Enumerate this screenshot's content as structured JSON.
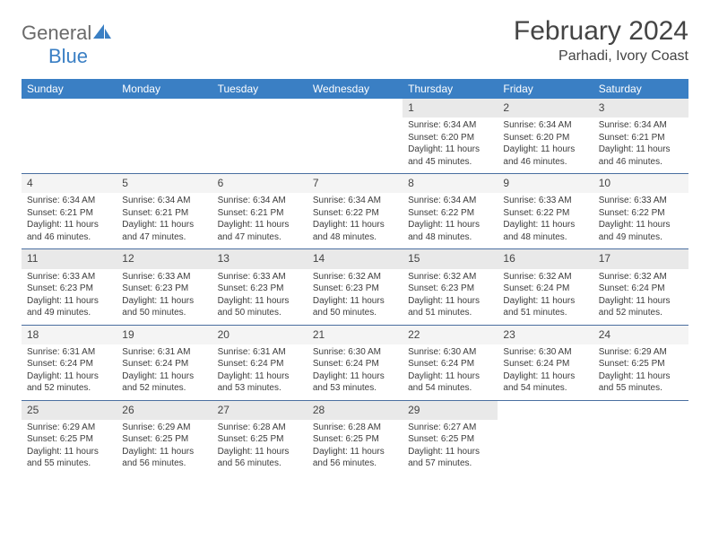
{
  "logo": {
    "part1": "General",
    "part2": "Blue"
  },
  "title": "February 2024",
  "location": "Parhadi, Ivory Coast",
  "day_headers": [
    "Sunday",
    "Monday",
    "Tuesday",
    "Wednesday",
    "Thursday",
    "Friday",
    "Saturday"
  ],
  "colors": {
    "header_bg": "#3a7fc4",
    "header_text": "#ffffff",
    "band_even": "#e9e9e9",
    "band_odd": "#f4f4f4",
    "divider": "#4a6fa0",
    "logo_gray": "#6a6a6a",
    "logo_blue": "#3a7fc4"
  },
  "weeks": [
    {
      "band": "even",
      "days": [
        null,
        null,
        null,
        null,
        {
          "n": "1",
          "sr": "6:34 AM",
          "ss": "6:20 PM",
          "dl": "11 hours and 45 minutes."
        },
        {
          "n": "2",
          "sr": "6:34 AM",
          "ss": "6:20 PM",
          "dl": "11 hours and 46 minutes."
        },
        {
          "n": "3",
          "sr": "6:34 AM",
          "ss": "6:21 PM",
          "dl": "11 hours and 46 minutes."
        }
      ]
    },
    {
      "band": "odd",
      "days": [
        {
          "n": "4",
          "sr": "6:34 AM",
          "ss": "6:21 PM",
          "dl": "11 hours and 46 minutes."
        },
        {
          "n": "5",
          "sr": "6:34 AM",
          "ss": "6:21 PM",
          "dl": "11 hours and 47 minutes."
        },
        {
          "n": "6",
          "sr": "6:34 AM",
          "ss": "6:21 PM",
          "dl": "11 hours and 47 minutes."
        },
        {
          "n": "7",
          "sr": "6:34 AM",
          "ss": "6:22 PM",
          "dl": "11 hours and 48 minutes."
        },
        {
          "n": "8",
          "sr": "6:34 AM",
          "ss": "6:22 PM",
          "dl": "11 hours and 48 minutes."
        },
        {
          "n": "9",
          "sr": "6:33 AM",
          "ss": "6:22 PM",
          "dl": "11 hours and 48 minutes."
        },
        {
          "n": "10",
          "sr": "6:33 AM",
          "ss": "6:22 PM",
          "dl": "11 hours and 49 minutes."
        }
      ]
    },
    {
      "band": "even",
      "days": [
        {
          "n": "11",
          "sr": "6:33 AM",
          "ss": "6:23 PM",
          "dl": "11 hours and 49 minutes."
        },
        {
          "n": "12",
          "sr": "6:33 AM",
          "ss": "6:23 PM",
          "dl": "11 hours and 50 minutes."
        },
        {
          "n": "13",
          "sr": "6:33 AM",
          "ss": "6:23 PM",
          "dl": "11 hours and 50 minutes."
        },
        {
          "n": "14",
          "sr": "6:32 AM",
          "ss": "6:23 PM",
          "dl": "11 hours and 50 minutes."
        },
        {
          "n": "15",
          "sr": "6:32 AM",
          "ss": "6:23 PM",
          "dl": "11 hours and 51 minutes."
        },
        {
          "n": "16",
          "sr": "6:32 AM",
          "ss": "6:24 PM",
          "dl": "11 hours and 51 minutes."
        },
        {
          "n": "17",
          "sr": "6:32 AM",
          "ss": "6:24 PM",
          "dl": "11 hours and 52 minutes."
        }
      ]
    },
    {
      "band": "odd",
      "days": [
        {
          "n": "18",
          "sr": "6:31 AM",
          "ss": "6:24 PM",
          "dl": "11 hours and 52 minutes."
        },
        {
          "n": "19",
          "sr": "6:31 AM",
          "ss": "6:24 PM",
          "dl": "11 hours and 52 minutes."
        },
        {
          "n": "20",
          "sr": "6:31 AM",
          "ss": "6:24 PM",
          "dl": "11 hours and 53 minutes."
        },
        {
          "n": "21",
          "sr": "6:30 AM",
          "ss": "6:24 PM",
          "dl": "11 hours and 53 minutes."
        },
        {
          "n": "22",
          "sr": "6:30 AM",
          "ss": "6:24 PM",
          "dl": "11 hours and 54 minutes."
        },
        {
          "n": "23",
          "sr": "6:30 AM",
          "ss": "6:24 PM",
          "dl": "11 hours and 54 minutes."
        },
        {
          "n": "24",
          "sr": "6:29 AM",
          "ss": "6:25 PM",
          "dl": "11 hours and 55 minutes."
        }
      ]
    },
    {
      "band": "even",
      "days": [
        {
          "n": "25",
          "sr": "6:29 AM",
          "ss": "6:25 PM",
          "dl": "11 hours and 55 minutes."
        },
        {
          "n": "26",
          "sr": "6:29 AM",
          "ss": "6:25 PM",
          "dl": "11 hours and 56 minutes."
        },
        {
          "n": "27",
          "sr": "6:28 AM",
          "ss": "6:25 PM",
          "dl": "11 hours and 56 minutes."
        },
        {
          "n": "28",
          "sr": "6:28 AM",
          "ss": "6:25 PM",
          "dl": "11 hours and 56 minutes."
        },
        {
          "n": "29",
          "sr": "6:27 AM",
          "ss": "6:25 PM",
          "dl": "11 hours and 57 minutes."
        },
        null,
        null
      ]
    }
  ],
  "labels": {
    "sunrise": "Sunrise:",
    "sunset": "Sunset:",
    "daylight": "Daylight:"
  }
}
